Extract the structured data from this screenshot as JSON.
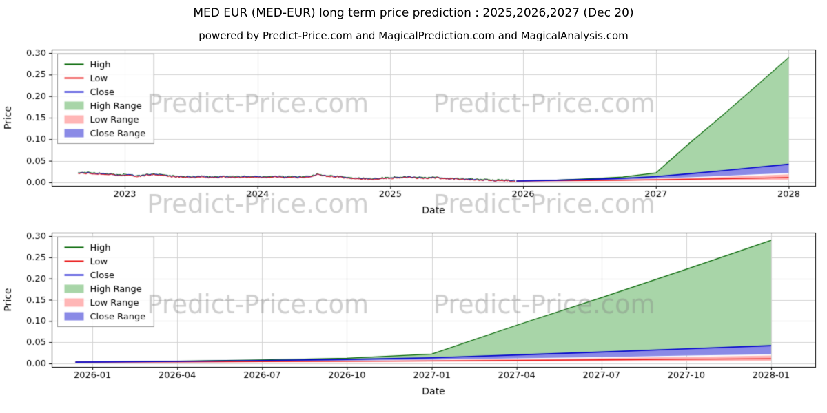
{
  "header": {
    "title": "MED EUR (MED-EUR) long term price prediction : 2025,2026,2027 (Dec 20)",
    "subtitle": "powered by Predict-Price.com and MagicalPrediction.com and MagicalAnalysis.com"
  },
  "watermark": {
    "text": "Predict-Price.com"
  },
  "colors": {
    "high": "#006400",
    "low": "#e81010",
    "close": "#0000cd",
    "high_range": "#a8d5a8",
    "low_range": "#ffb6b6",
    "close_range": "#8a8ae6",
    "grid": "#d3d3d3",
    "axis": "#000000",
    "watermark": "rgba(128,128,128,0.38)"
  },
  "legend": [
    {
      "label": "High",
      "type": "line",
      "color_key": "high"
    },
    {
      "label": "Low",
      "type": "line",
      "color_key": "low"
    },
    {
      "label": "Close",
      "type": "line",
      "color_key": "close"
    },
    {
      "label": "High Range",
      "type": "patch",
      "color_key": "high_range"
    },
    {
      "label": "Low Range",
      "type": "patch",
      "color_key": "low_range"
    },
    {
      "label": "Close Range",
      "type": "patch",
      "color_key": "close_range"
    }
  ],
  "chart_data": [
    {
      "type": "line",
      "title": "",
      "xlabel": "Date",
      "ylabel": "Price",
      "xlim": [
        2022.45,
        2028.2
      ],
      "ylim": [
        0.0,
        0.3
      ],
      "yticks": [
        0.0,
        0.05,
        0.1,
        0.15,
        0.2,
        0.25,
        0.3
      ],
      "xticks": [
        {
          "x": 2023,
          "label": "2023"
        },
        {
          "x": 2024,
          "label": "2024"
        },
        {
          "x": 2025,
          "label": "2025"
        },
        {
          "x": 2026,
          "label": "2026"
        },
        {
          "x": 2027,
          "label": "2027"
        },
        {
          "x": 2028,
          "label": "2028"
        }
      ],
      "legend_position": "upper left",
      "grid": true,
      "history": {
        "noise": 0.0012,
        "points": [
          [
            2022.65,
            0.0215
          ],
          [
            2022.7,
            0.022
          ],
          [
            2022.75,
            0.021
          ],
          [
            2022.8,
            0.0205
          ],
          [
            2022.85,
            0.0195
          ],
          [
            2022.9,
            0.0185
          ],
          [
            2022.95,
            0.0165
          ],
          [
            2023.0,
            0.0175
          ],
          [
            2023.05,
            0.016
          ],
          [
            2023.1,
            0.014
          ],
          [
            2023.15,
            0.0165
          ],
          [
            2023.2,
            0.019
          ],
          [
            2023.25,
            0.0175
          ],
          [
            2023.3,
            0.016
          ],
          [
            2023.35,
            0.0145
          ],
          [
            2023.4,
            0.013
          ],
          [
            2023.45,
            0.0125
          ],
          [
            2023.5,
            0.012
          ],
          [
            2023.55,
            0.013
          ],
          [
            2023.6,
            0.0125
          ],
          [
            2023.65,
            0.012
          ],
          [
            2023.7,
            0.0125
          ],
          [
            2023.75,
            0.013
          ],
          [
            2023.8,
            0.0125
          ],
          [
            2023.85,
            0.012
          ],
          [
            2023.9,
            0.0125
          ],
          [
            2023.95,
            0.013
          ],
          [
            2024.0,
            0.0128
          ],
          [
            2024.05,
            0.0125
          ],
          [
            2024.1,
            0.0122
          ],
          [
            2024.15,
            0.0128
          ],
          [
            2024.2,
            0.0125
          ],
          [
            2024.25,
            0.012
          ],
          [
            2024.3,
            0.0118
          ],
          [
            2024.35,
            0.0125
          ],
          [
            2024.4,
            0.0135
          ],
          [
            2024.45,
            0.0185
          ],
          [
            2024.5,
            0.0165
          ],
          [
            2024.55,
            0.0145
          ],
          [
            2024.6,
            0.013
          ],
          [
            2024.65,
            0.0115
          ],
          [
            2024.7,
            0.0105
          ],
          [
            2024.75,
            0.0095
          ],
          [
            2024.8,
            0.0085
          ],
          [
            2024.85,
            0.008
          ],
          [
            2024.9,
            0.0085
          ],
          [
            2024.95,
            0.0095
          ],
          [
            2025.0,
            0.0105
          ],
          [
            2025.05,
            0.011
          ],
          [
            2025.1,
            0.0115
          ],
          [
            2025.15,
            0.0118
          ],
          [
            2025.2,
            0.0112
          ],
          [
            2025.25,
            0.01
          ],
          [
            2025.3,
            0.0108
          ],
          [
            2025.35,
            0.0115
          ],
          [
            2025.4,
            0.009
          ],
          [
            2025.45,
            0.0082
          ],
          [
            2025.5,
            0.0078
          ],
          [
            2025.55,
            0.0072
          ],
          [
            2025.6,
            0.0066
          ],
          [
            2025.65,
            0.006
          ],
          [
            2025.7,
            0.0055
          ],
          [
            2025.75,
            0.005
          ],
          [
            2025.8,
            0.0045
          ],
          [
            2025.85,
            0.004
          ],
          [
            2025.9,
            0.0035
          ],
          [
            2025.95,
            0.003
          ]
        ]
      },
      "prediction": {
        "x": [
          2025.95,
          2026.25,
          2026.5,
          2026.75,
          2027.0,
          2027.25,
          2027.5,
          2027.75,
          2028.0
        ],
        "high_line": [
          0.003,
          0.0055,
          0.0085,
          0.0125,
          0.022,
          0.09,
          0.155,
          0.222,
          0.29
        ],
        "close_line": [
          0.003,
          0.0048,
          0.0068,
          0.0095,
          0.0135,
          0.02,
          0.027,
          0.0345,
          0.042
        ],
        "low_line": [
          0.003,
          0.0036,
          0.0043,
          0.0051,
          0.006,
          0.0072,
          0.0085,
          0.0098,
          0.0112
        ],
        "high_range_top": [
          0.003,
          0.0055,
          0.0085,
          0.0125,
          0.022,
          0.09,
          0.155,
          0.222,
          0.29
        ],
        "high_range_bottom": [
          0.003,
          0.0048,
          0.0068,
          0.0095,
          0.0135,
          0.02,
          0.027,
          0.0345,
          0.042
        ],
        "close_range_top": [
          0.003,
          0.0048,
          0.0068,
          0.0095,
          0.0135,
          0.02,
          0.027,
          0.0345,
          0.042
        ],
        "close_range_bottom": [
          0.003,
          0.004,
          0.0052,
          0.0068,
          0.009,
          0.012,
          0.0152,
          0.0185,
          0.0215
        ],
        "low_range_top": [
          0.003,
          0.0038,
          0.0048,
          0.006,
          0.0078,
          0.01,
          0.0125,
          0.0155,
          0.0185
        ],
        "low_range_bottom": [
          0.003,
          0.0033,
          0.0036,
          0.004,
          0.0044,
          0.0048,
          0.0053,
          0.0058,
          0.0063
        ]
      }
    },
    {
      "type": "line",
      "title": "",
      "xlabel": "Date",
      "ylabel": "Price",
      "xlim": [
        2025.88,
        2028.13
      ],
      "ylim": [
        0.0,
        0.3
      ],
      "yticks": [
        0.0,
        0.05,
        0.1,
        0.15,
        0.2,
        0.25,
        0.3
      ],
      "xticks": [
        {
          "x": 2026.0,
          "label": "2026-01"
        },
        {
          "x": 2026.25,
          "label": "2026-04"
        },
        {
          "x": 2026.5,
          "label": "2026-07"
        },
        {
          "x": 2026.75,
          "label": "2026-10"
        },
        {
          "x": 2027.0,
          "label": "2027-01"
        },
        {
          "x": 2027.25,
          "label": "2027-04"
        },
        {
          "x": 2027.5,
          "label": "2027-07"
        },
        {
          "x": 2027.75,
          "label": "2027-10"
        },
        {
          "x": 2028.0,
          "label": "2028-01"
        }
      ],
      "legend_position": "upper left",
      "grid": true,
      "prediction": {
        "x": [
          2025.95,
          2026.25,
          2026.5,
          2026.75,
          2027.0,
          2027.25,
          2027.5,
          2027.75,
          2028.0
        ],
        "high_line": [
          0.003,
          0.0055,
          0.0085,
          0.0125,
          0.022,
          0.09,
          0.155,
          0.222,
          0.29
        ],
        "close_line": [
          0.003,
          0.0048,
          0.0068,
          0.0095,
          0.0135,
          0.02,
          0.027,
          0.0345,
          0.042
        ],
        "low_line": [
          0.003,
          0.0036,
          0.0043,
          0.0051,
          0.006,
          0.0072,
          0.0085,
          0.0098,
          0.0112
        ],
        "high_range_top": [
          0.003,
          0.0055,
          0.0085,
          0.0125,
          0.022,
          0.09,
          0.155,
          0.222,
          0.29
        ],
        "high_range_bottom": [
          0.003,
          0.0048,
          0.0068,
          0.0095,
          0.0135,
          0.02,
          0.027,
          0.0345,
          0.042
        ],
        "close_range_top": [
          0.003,
          0.0048,
          0.0068,
          0.0095,
          0.0135,
          0.02,
          0.027,
          0.0345,
          0.042
        ],
        "close_range_bottom": [
          0.003,
          0.004,
          0.0052,
          0.0068,
          0.009,
          0.012,
          0.0152,
          0.0185,
          0.0215
        ],
        "low_range_top": [
          0.003,
          0.0038,
          0.0048,
          0.006,
          0.0078,
          0.01,
          0.0125,
          0.0155,
          0.0185
        ],
        "low_range_bottom": [
          0.003,
          0.0033,
          0.0036,
          0.004,
          0.0044,
          0.0048,
          0.0053,
          0.0058,
          0.0063
        ]
      }
    }
  ]
}
